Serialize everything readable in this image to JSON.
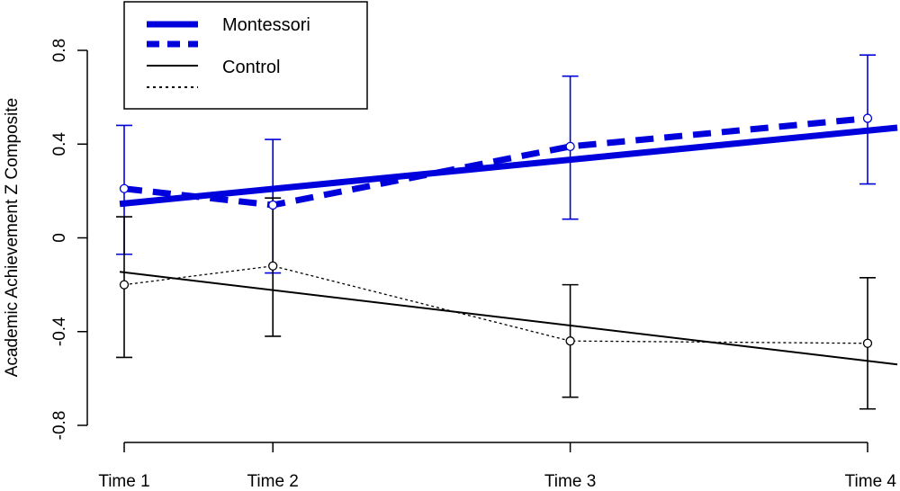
{
  "chart_data": {
    "type": "line",
    "title": "",
    "xlabel": "",
    "ylabel": "Academic Achievement Z Composite",
    "categories": [
      "Time 1",
      "Time 2",
      "Time 3",
      "Time 4"
    ],
    "x": [
      1,
      2,
      4,
      6
    ],
    "ylim": [
      -0.8,
      0.8
    ],
    "yticks": [
      {
        "value": -0.8,
        "label": "-0.8"
      },
      {
        "value": -0.4,
        "label": "-0.4"
      },
      {
        "value": 0,
        "label": "0"
      },
      {
        "value": 0.4,
        "label": "0.4"
      },
      {
        "value": 0.8,
        "label": "0.8"
      }
    ],
    "grid": false,
    "legend_position": "top-left",
    "legend": [
      {
        "label": "Montessori",
        "style": "thick-solid",
        "color": "#0000dd"
      },
      {
        "label": "",
        "style": "thick-dashed",
        "color": "#0000dd"
      },
      {
        "label": "Control",
        "style": "solid",
        "color": "#000000"
      },
      {
        "label": "",
        "style": "dotted",
        "color": "#000000"
      }
    ],
    "series": [
      {
        "name": "Montessori",
        "kind": "observed",
        "color": "#0000dd",
        "values": [
          0.21,
          0.14,
          0.39,
          0.51
        ],
        "error_low": [
          -0.07,
          -0.15,
          0.08,
          0.23
        ],
        "error_high": [
          0.48,
          0.42,
          0.69,
          0.78
        ]
      },
      {
        "name": "Montessori",
        "kind": "fit",
        "color": "#0000dd",
        "x_range": [
          0.97,
          6.2
        ],
        "values_at_ends": [
          0.145,
          0.47
        ]
      },
      {
        "name": "Control",
        "kind": "observed",
        "color": "#000000",
        "values": [
          -0.2,
          -0.12,
          -0.44,
          -0.45
        ],
        "error_low": [
          -0.51,
          -0.42,
          -0.68,
          -0.73
        ],
        "error_high": [
          0.09,
          0.17,
          -0.2,
          -0.17
        ]
      },
      {
        "name": "Control",
        "kind": "fit",
        "color": "#000000",
        "x_range": [
          0.97,
          6.2
        ],
        "values_at_ends": [
          -0.145,
          -0.54
        ]
      }
    ]
  }
}
